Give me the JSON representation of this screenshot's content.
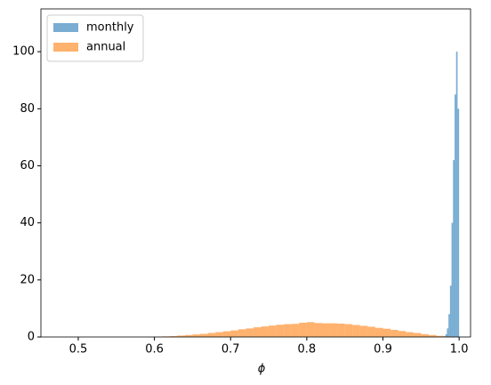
{
  "chart_data": {
    "type": "histogram",
    "xlabel": "ϕ",
    "xlim": [
      0.451,
      1.015
    ],
    "ylim": [
      0,
      115
    ],
    "xticks": [
      0.5,
      0.6,
      0.7,
      0.8,
      0.9,
      {
        "value": 1,
        "label": "1.0"
      }
    ],
    "yticks": [
      0,
      20,
      40,
      60,
      80,
      100
    ],
    "legend": "upper-left",
    "alpha": 0.6,
    "series": [
      {
        "name": "monthly",
        "color": "#1f77b4",
        "bins": [
          0.98,
          0.982,
          0.984,
          0.986,
          0.988,
          0.99,
          0.992,
          0.994,
          0.996,
          0.998,
          1.0
        ],
        "values": [
          0.3,
          1,
          3,
          8,
          18,
          40,
          62,
          85,
          100,
          80
        ]
      },
      {
        "name": "annual",
        "color": "#ff7f0e",
        "bins": [
          0.6,
          0.61,
          0.62,
          0.63,
          0.64,
          0.65,
          0.66,
          0.67,
          0.68,
          0.69,
          0.7,
          0.71,
          0.72,
          0.73,
          0.74,
          0.75,
          0.76,
          0.77,
          0.78,
          0.79,
          0.8,
          0.81,
          0.82,
          0.83,
          0.84,
          0.85,
          0.86,
          0.87,
          0.88,
          0.89,
          0.9,
          0.91,
          0.92,
          0.93,
          0.94,
          0.95,
          0.96,
          0.97,
          0.98,
          0.99
        ],
        "values": [
          0.1,
          0.2,
          0.3,
          0.5,
          0.7,
          0.9,
          1.1,
          1.4,
          1.7,
          2.0,
          2.3,
          2.7,
          3.0,
          3.4,
          3.7,
          4.0,
          4.3,
          4.5,
          4.6,
          5.0,
          5.2,
          4.9,
          4.8,
          4.8,
          4.7,
          4.5,
          4.2,
          3.9,
          3.6,
          3.2,
          2.9,
          2.5,
          2.1,
          1.7,
          1.4,
          1.0,
          0.7,
          0.4,
          0.2
        ]
      }
    ]
  }
}
